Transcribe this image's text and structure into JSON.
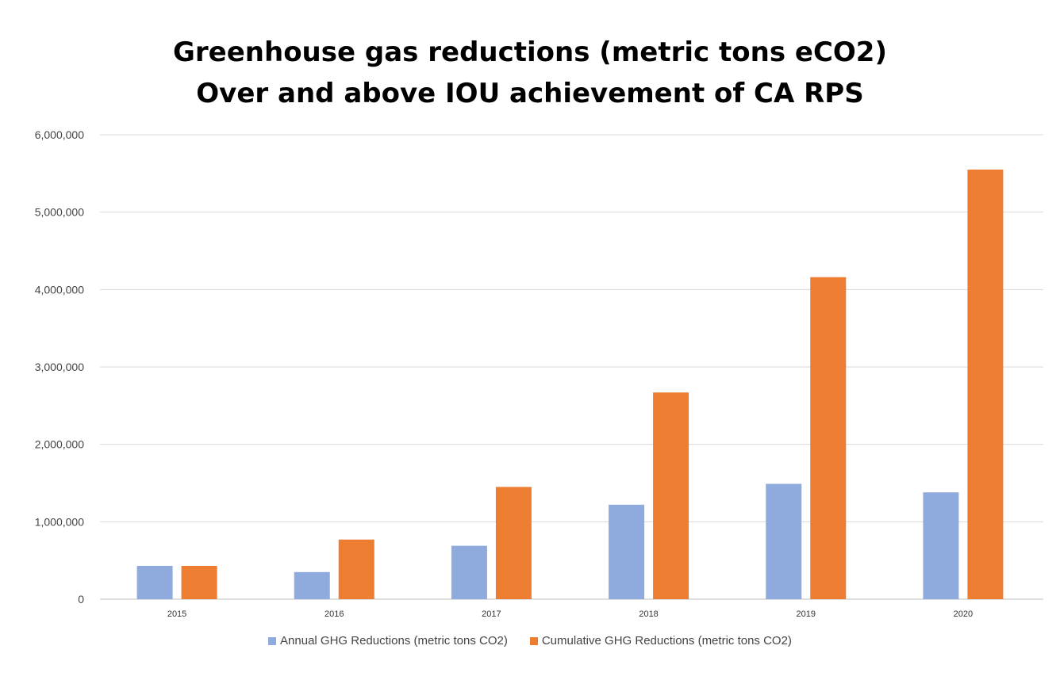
{
  "chart_data": {
    "type": "bar",
    "title": [
      "Greenhouse gas reductions (metric tons eCO2)",
      "Over and above IOU achievement of CA RPS"
    ],
    "xlabel": "",
    "ylabel": "",
    "categories": [
      "2015",
      "2016",
      "2017",
      "2018",
      "2019",
      "2020"
    ],
    "series": [
      {
        "name": "Annual GHG Reductions (metric tons CO2)",
        "color": "#8faadc",
        "values": [
          430000,
          350000,
          690000,
          1220000,
          1490000,
          1380000
        ]
      },
      {
        "name": "Cumulative GHG Reductions  (metric tons CO2)",
        "color": "#ed7d31",
        "values": [
          430000,
          770000,
          1450000,
          2670000,
          4160000,
          5550000
        ]
      }
    ],
    "ylim": [
      0,
      6000000
    ],
    "yticks": [
      0,
      1000000,
      2000000,
      3000000,
      4000000,
      5000000,
      6000000
    ],
    "ytick_labels": [
      "0",
      "1,000,000",
      "2,000,000",
      "3,000,000",
      "4,000,000",
      "5,000,000",
      "6,000,000"
    ],
    "grid": true,
    "legend_position": "bottom"
  }
}
